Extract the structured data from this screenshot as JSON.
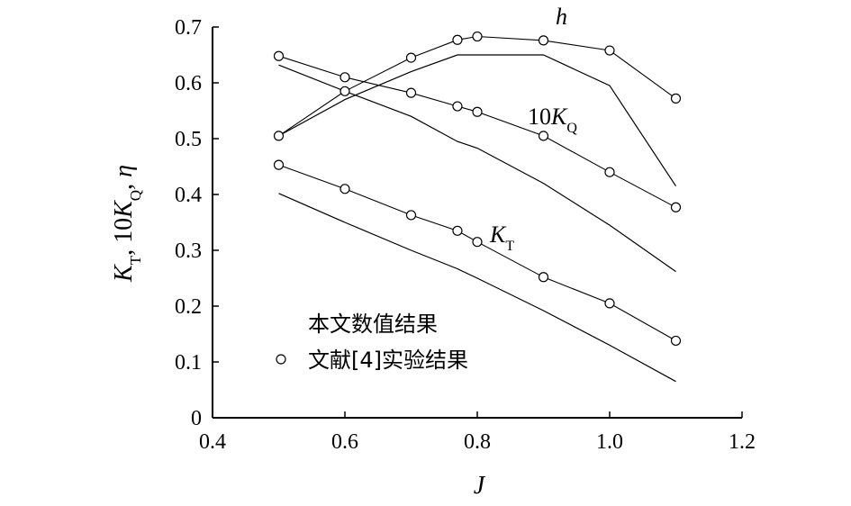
{
  "chart_data": {
    "type": "line",
    "xlabel": "J",
    "ylabel": "K_T, 10K_Q, η",
    "xlim": [
      0.4,
      1.2
    ],
    "ylim": [
      0,
      0.7
    ],
    "xticks": [
      "0.4",
      "0.6",
      "0.8",
      "1.0",
      "1.2"
    ],
    "yticks": [
      "0",
      "0.1",
      "0.2",
      "0.3",
      "0.4",
      "0.5",
      "0.6",
      "0.7"
    ],
    "grid": false,
    "legend": {
      "position": "lower-left",
      "entries": [
        {
          "label": "本文数值结果",
          "marker": "line"
        },
        {
          "label": "文献[4]实验结果",
          "marker": "open-circle"
        }
      ]
    },
    "annotations": [
      {
        "text": "h",
        "x": 0.87,
        "y": 0.72
      },
      {
        "text": "10K_Q",
        "x": 0.86,
        "y": 0.515
      },
      {
        "text": "K_T",
        "x": 0.81,
        "y": 0.32
      }
    ],
    "series": [
      {
        "group": "h",
        "kind": "numerical",
        "x": [
          0.5,
          0.6,
          0.7,
          0.77,
          0.8,
          0.9,
          1.0,
          1.1
        ],
        "y": [
          0.505,
          0.57,
          0.62,
          0.65,
          0.65,
          0.65,
          0.595,
          0.415
        ]
      },
      {
        "group": "h",
        "kind": "experimental",
        "x": [
          0.5,
          0.6,
          0.7,
          0.77,
          0.8,
          0.9,
          1.0,
          1.1
        ],
        "y": [
          0.505,
          0.585,
          0.645,
          0.677,
          0.683,
          0.676,
          0.658,
          0.572
        ]
      },
      {
        "group": "10K_Q",
        "kind": "numerical",
        "x": [
          0.5,
          0.6,
          0.7,
          0.77,
          0.8,
          0.9,
          1.0,
          1.1
        ],
        "y": [
          0.632,
          0.585,
          0.54,
          0.495,
          0.483,
          0.42,
          0.345,
          0.262
        ]
      },
      {
        "group": "10K_Q",
        "kind": "experimental",
        "x": [
          0.5,
          0.6,
          0.7,
          0.77,
          0.8,
          0.9,
          1.0,
          1.1
        ],
        "y": [
          0.648,
          0.61,
          0.582,
          0.558,
          0.548,
          0.505,
          0.44,
          0.377
        ]
      },
      {
        "group": "K_T",
        "kind": "numerical",
        "x": [
          0.5,
          0.6,
          0.7,
          0.77,
          0.8,
          0.9,
          1.0,
          1.1
        ],
        "y": [
          0.402,
          0.35,
          0.3,
          0.267,
          0.25,
          0.192,
          0.13,
          0.065
        ]
      },
      {
        "group": "K_T",
        "kind": "experimental",
        "x": [
          0.5,
          0.6,
          0.7,
          0.77,
          0.8,
          0.9,
          1.0,
          1.1
        ],
        "y": [
          0.453,
          0.41,
          0.363,
          0.335,
          0.315,
          0.252,
          0.205,
          0.138
        ]
      }
    ]
  }
}
